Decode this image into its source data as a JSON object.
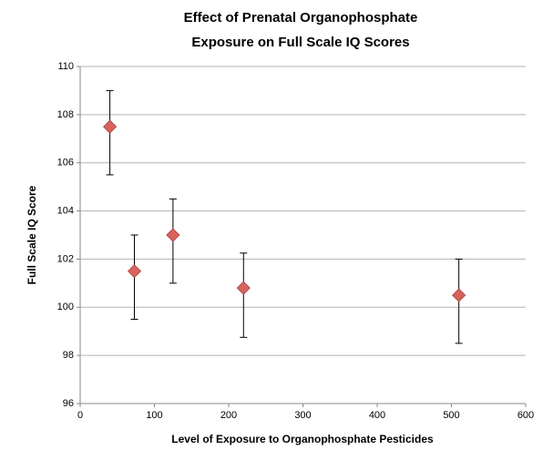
{
  "chart_data": {
    "type": "scatter",
    "title": "Effect of Prenatal Organophosphate Exposure on Full Scale IQ Scores",
    "x_label": "Level of Exposure to Organophosphate Pesticides",
    "y_label": "Full Scale IQ Score",
    "series": [
      {
        "x": [
          40,
          73,
          125,
          220,
          510
        ],
        "values": [
          107.5,
          101.5,
          103,
          100.8,
          100.5
        ],
        "error_plus": [
          1.5,
          1.5,
          1.5,
          1.45,
          1.5
        ],
        "error_minus": [
          2,
          2,
          2,
          2.05,
          2
        ],
        "color": "#d9625c"
      }
    ],
    "xlim": [
      0,
      600
    ],
    "xticks": [
      0,
      100,
      200,
      300,
      400,
      500,
      600
    ],
    "ylim": [
      96,
      110
    ],
    "yticks": [
      96,
      98,
      100,
      102,
      104,
      106,
      108,
      110
    ],
    "grid": true
  }
}
